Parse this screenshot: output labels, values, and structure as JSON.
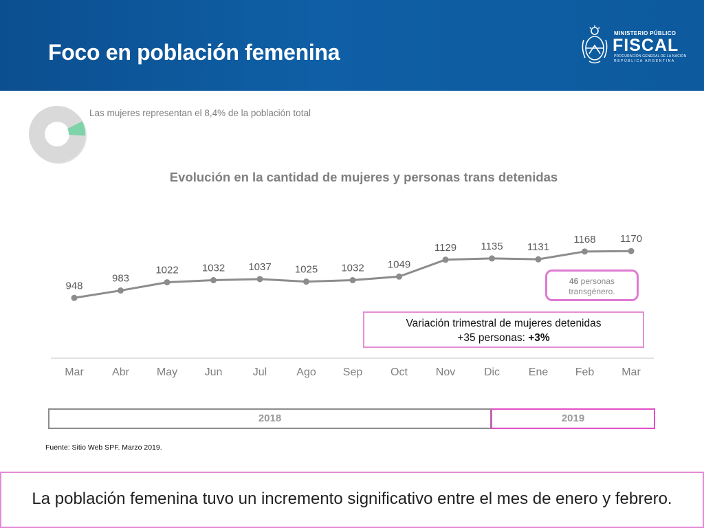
{
  "header": {
    "title": "Foco en población femenina",
    "logo": {
      "line1": "MINISTERIO PÚBLICO",
      "line2": "FISCAL",
      "line3": "PROCURACIÓN GENERAL DE LA NACIÓN",
      "line4": "REPÚBLICA ARGENTINA",
      "icon": "coat-of-arms-icon"
    }
  },
  "donut": {
    "caption": "Las mujeres representan el 8,4% de la población total",
    "share": 0.084,
    "colors": {
      "share": "#7ed3a8",
      "rest": "#d9d9d9"
    }
  },
  "chart_data": {
    "type": "line",
    "title": "Evolución en la cantidad de mujeres y personas trans detenidas",
    "categories": [
      "Mar",
      "Abr",
      "May",
      "Jun",
      "Jul",
      "Ago",
      "Sep",
      "Oct",
      "Nov",
      "Dic",
      "Ene",
      "Feb",
      "Mar"
    ],
    "series": [
      {
        "values": [
          948,
          983,
          1022,
          1032,
          1037,
          1025,
          1032,
          1049,
          1129,
          1135,
          1131,
          1168,
          1170
        ]
      }
    ],
    "data_labels": [
      "948",
      "983",
      "1022",
      "1032",
      "1037",
      "1025",
      "1032",
      "1049",
      "1129",
      "1135",
      "1131",
      "1168",
      "1170"
    ],
    "ylim": [
      600,
      1350
    ],
    "grid": false,
    "line_color": "#8c8c8c",
    "periods": [
      {
        "label": "2018",
        "color": "#8c8c8c"
      },
      {
        "label": "2019",
        "color": "#e24fc7"
      }
    ]
  },
  "callouts": {
    "trans": {
      "count": "46",
      "text1": "personas",
      "text2": "transgénero."
    },
    "variation": {
      "line1": "Variación trimestral de mujeres detenidas",
      "line2_prefix": "+35 personas: ",
      "line2_bold": "+3%"
    }
  },
  "source": "Fuente: Sitio Web SPF. Marzo 2019.",
  "conclusion": "La población femenina tuvo un incremento significativo entre el mes de enero y febrero."
}
